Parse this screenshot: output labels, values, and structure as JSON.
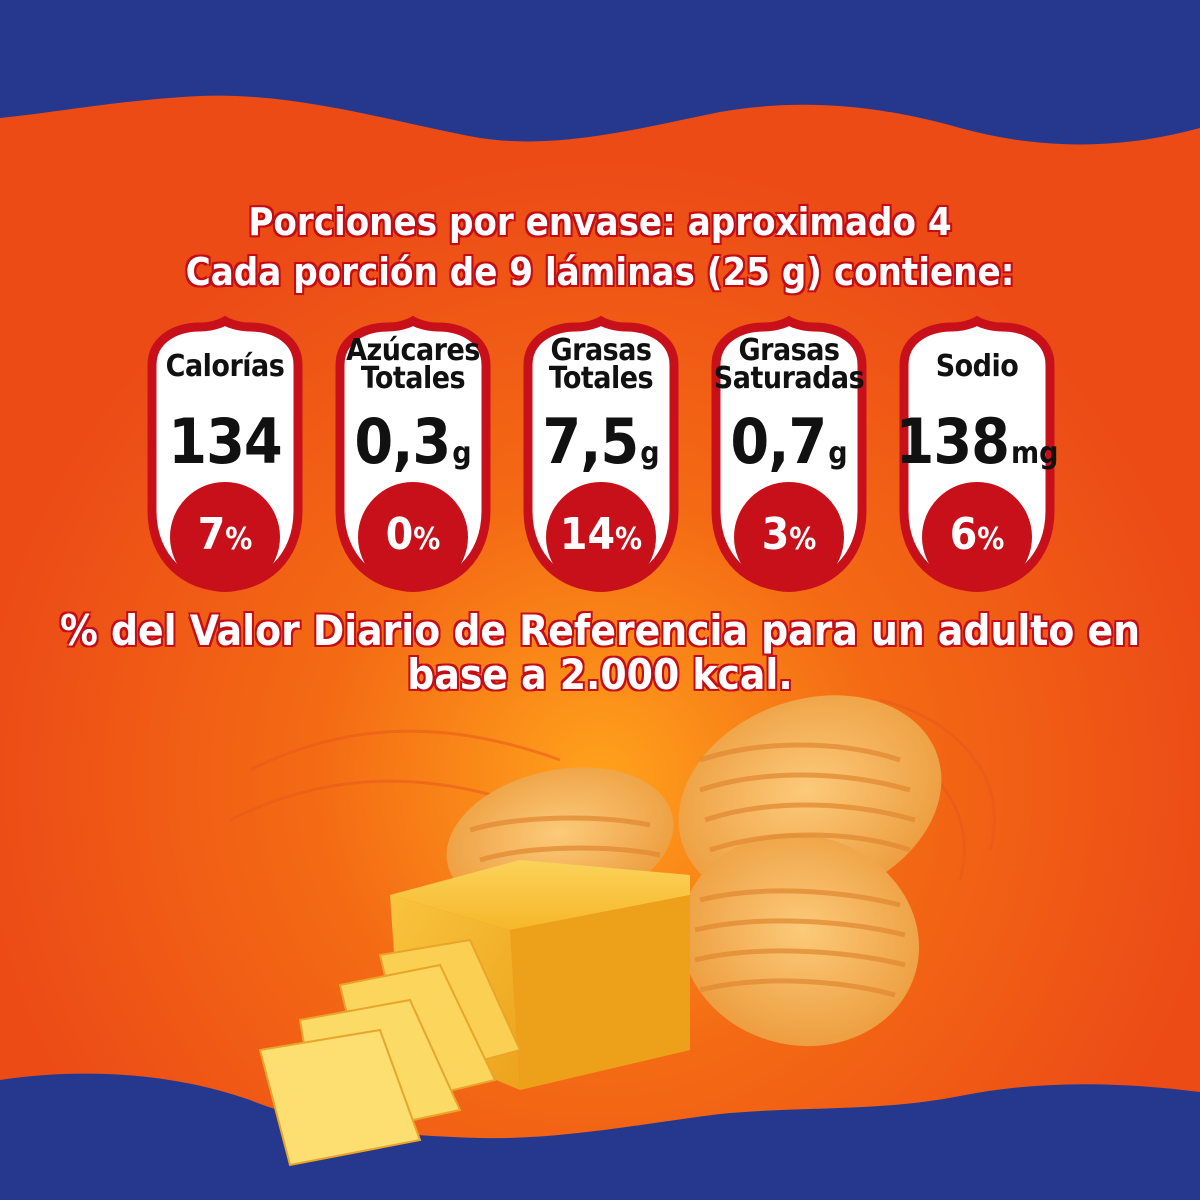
{
  "header": {
    "line1": "Porciones por envase: aproximado 4",
    "line2": "Cada porción de 9 láminas (25 g) contiene:"
  },
  "nutrients": [
    {
      "label_lines": [
        "Calorías"
      ],
      "value": "134",
      "unit": "",
      "percent": "7",
      "percent_sign": "%"
    },
    {
      "label_lines": [
        "Azúcares",
        "Totales"
      ],
      "value": "0,3",
      "unit": "g",
      "percent": "0",
      "percent_sign": "%"
    },
    {
      "label_lines": [
        "Grasas",
        "Totales"
      ],
      "value": "7,5",
      "unit": "g",
      "percent": "14",
      "percent_sign": "%"
    },
    {
      "label_lines": [
        "Grasas",
        "Saturadas"
      ],
      "value": "0,7",
      "unit": "g",
      "percent": "3",
      "percent_sign": "%"
    },
    {
      "label_lines": [
        "Sodio"
      ],
      "value": "138",
      "unit": "mg",
      "percent": "6",
      "percent_sign": "%"
    }
  ],
  "footer": {
    "line1": "% del Valor Diario de Referencia para un adulto en",
    "line2": "base a 2.000 kcal."
  },
  "colors": {
    "navy": "#26388e",
    "orange": "#f05a14",
    "red": "#c8101a",
    "cheese": "#f5b72c"
  }
}
